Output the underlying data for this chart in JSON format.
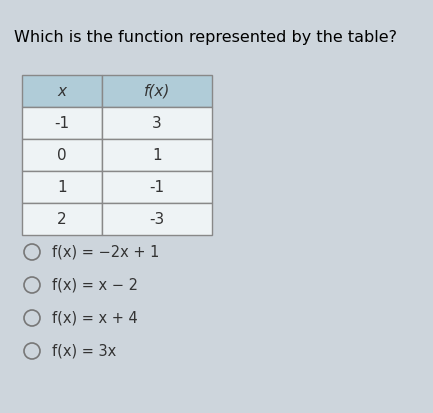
{
  "title": "Which is the function represented by the table?",
  "table_headers": [
    "x",
    "f(x)"
  ],
  "table_data": [
    [
      "-1",
      "3"
    ],
    [
      "0",
      "1"
    ],
    [
      "1",
      "-1"
    ],
    [
      "2",
      "-3"
    ]
  ],
  "options": [
    "f(x) = −2x + 1",
    "f(x) = x − 2",
    "f(x) = x + 4",
    "f(x) = 3x"
  ],
  "bg_color": "#cdd5dc",
  "table_header_bg": "#b0ccd8",
  "table_cell_bg": "#eef3f5",
  "table_border_color": "#888888",
  "title_fontsize": 11.5,
  "option_fontsize": 10.5,
  "table_fontsize": 11
}
